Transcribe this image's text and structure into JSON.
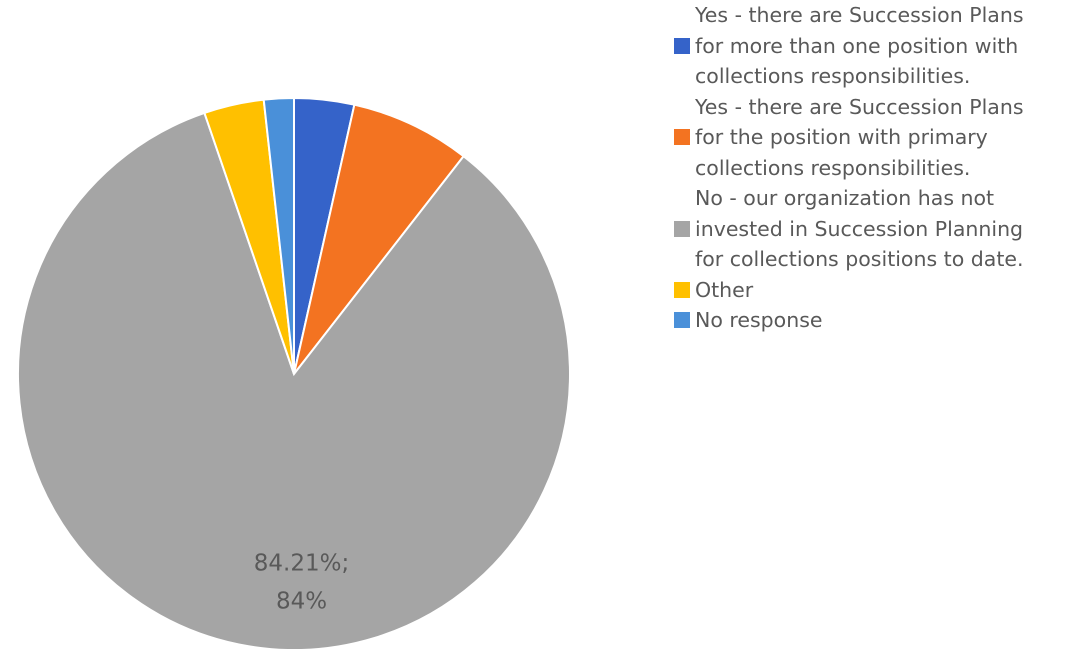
{
  "chart_data": {
    "type": "pie",
    "title": "",
    "slices": [
      {
        "label": "Yes - there are Succession Plans\nfor more than one position with\ncollections responsibilities.",
        "value": 3.51,
        "color": "#3563C9"
      },
      {
        "label": "Yes - there are Succession Plans\nfor the position with primary\ncollections responsibilities.",
        "value": 7.02,
        "color": "#F37321"
      },
      {
        "label": "No - our organization has not\ninvested in Succession Planning\nfor collections positions to date.",
        "value": 84.21,
        "color": "#A5A5A5",
        "data_label_line1": "84.21%;",
        "data_label_line2": "84%"
      },
      {
        "label": "Other",
        "value": 3.51,
        "color": "#FFC000"
      },
      {
        "label": "No response",
        "value": 1.75,
        "color": "#4A90D9"
      }
    ],
    "legend_position": "right"
  }
}
